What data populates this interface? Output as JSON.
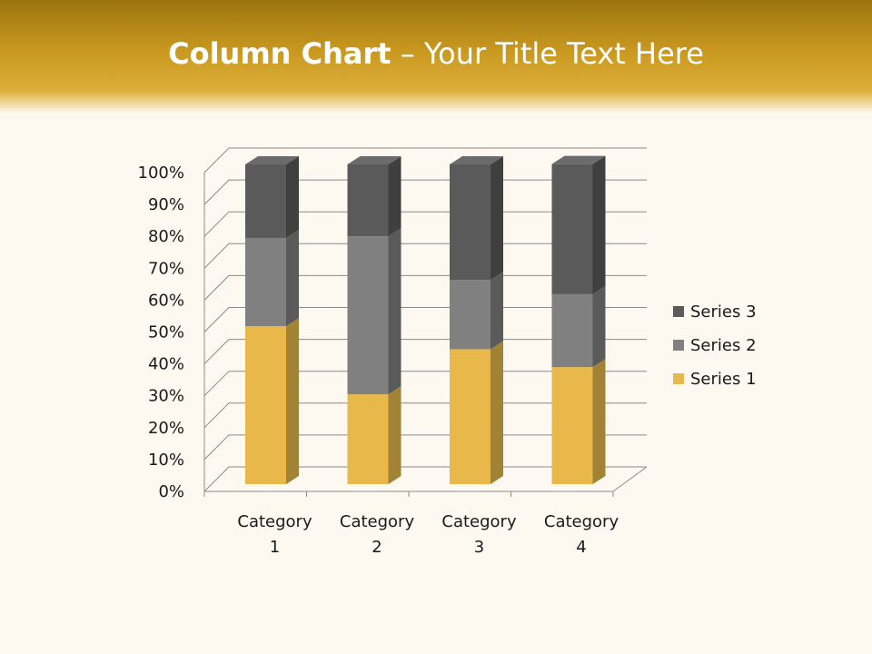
{
  "title": {
    "bold": "Column Chart",
    "rest": " – Your Title Text Here"
  },
  "chart_data": {
    "type": "bar",
    "subtype": "3d-stacked-100-percent-column",
    "categories": [
      "Category 1",
      "Category 2",
      "Category 3",
      "Category 4"
    ],
    "series": [
      {
        "name": "Series 1",
        "values": [
          49.4,
          28.1,
          42.2,
          36.6
        ],
        "color": "#e8b94a"
      },
      {
        "name": "Series 2",
        "values": [
          27.6,
          49.4,
          21.7,
          22.8
        ],
        "color": "#808080"
      },
      {
        "name": "Series 3",
        "values": [
          23.0,
          22.5,
          36.1,
          40.7
        ],
        "color": "#5a5a5a"
      }
    ],
    "yticks": [
      "0%",
      "10%",
      "20%",
      "30%",
      "40%",
      "50%",
      "60%",
      "70%",
      "80%",
      "90%",
      "100%"
    ],
    "ylim": [
      0,
      100
    ],
    "grid": true,
    "legend": "right",
    "legend_order": [
      "Series 3",
      "Series 2",
      "Series 1"
    ]
  }
}
